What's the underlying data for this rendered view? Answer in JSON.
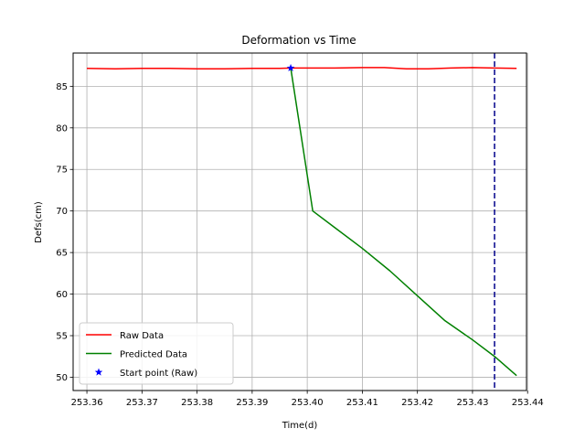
{
  "chart_data": {
    "type": "line",
    "title": "Deformation vs Time",
    "xlabel": "Time(d)",
    "ylabel": "Defs(cm)",
    "xlim": [
      253.3575,
      253.4398
    ],
    "ylim": [
      48.4,
      89.0
    ],
    "xticks": [
      253.36,
      253.37,
      253.38,
      253.39,
      253.4,
      253.41,
      253.42,
      253.43,
      253.44
    ],
    "xtick_labels": [
      "253.36",
      "253.37",
      "253.38",
      "253.39",
      "253.40",
      "253.41",
      "253.42",
      "253.43",
      "253.44"
    ],
    "yticks": [
      50,
      55,
      60,
      65,
      70,
      75,
      80,
      85
    ],
    "ytick_labels": [
      "50",
      "55",
      "60",
      "65",
      "70",
      "75",
      "80",
      "85"
    ],
    "grid": true,
    "legend_position": "lower-left",
    "series": [
      {
        "name": "Raw Data",
        "color": "#ff0000",
        "style": "solid",
        "x": [
          253.36,
          253.365,
          253.37,
          253.375,
          253.38,
          253.385,
          253.39,
          253.395,
          253.397,
          253.4,
          253.405,
          253.41,
          253.414,
          253.418,
          253.422,
          253.426,
          253.43,
          253.434,
          253.438
        ],
        "y": [
          87.15,
          87.1,
          87.15,
          87.15,
          87.1,
          87.1,
          87.15,
          87.15,
          87.2,
          87.2,
          87.2,
          87.25,
          87.25,
          87.1,
          87.1,
          87.2,
          87.25,
          87.2,
          87.15
        ]
      },
      {
        "name": "Predicted Data",
        "color": "#008000",
        "style": "solid",
        "x": [
          253.397,
          253.401,
          253.405,
          253.41,
          253.415,
          253.42,
          253.425,
          253.43,
          253.434,
          253.438
        ],
        "y": [
          87.2,
          70.0,
          68.0,
          65.5,
          62.8,
          59.8,
          56.8,
          54.5,
          52.5,
          50.2
        ]
      }
    ],
    "markers": [
      {
        "name": "Start point (Raw)",
        "color": "#0000ff",
        "symbol": "star",
        "x": 253.397,
        "y": 87.2
      }
    ],
    "vlines": [
      {
        "x": 253.434,
        "color": "#00008b",
        "style": "dashed"
      }
    ]
  }
}
